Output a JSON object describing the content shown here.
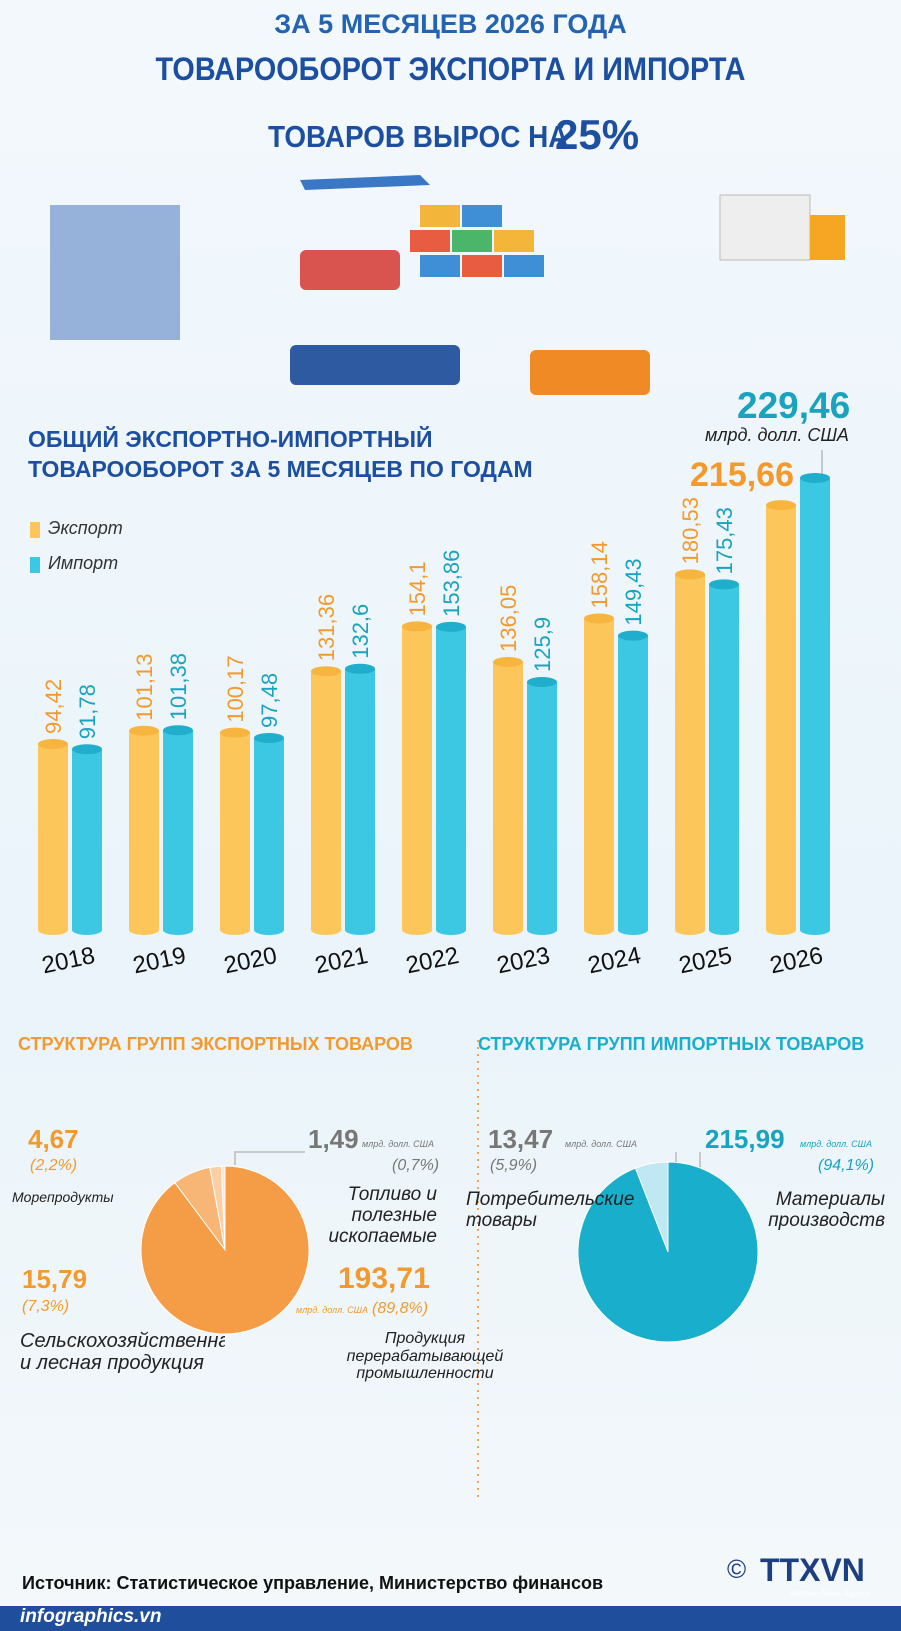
{
  "header": {
    "line1": "ЗА 5 МЕСЯЦЕВ 2026 ГОДА",
    "line2": "ТОВАРООБОРОТ ЭКСПОРТА И ИМПОРТА",
    "line3": "ТОВАРОВ ВЫРОС НА",
    "highlight": "25%"
  },
  "chart_data": [
    {
      "type": "bar",
      "title": [
        "ОБЩИЙ ЭКСПОРТНО-ИМПОРТНЫЙ",
        "ТОВАРООБОРОТ ЗА 5 МЕСЯЦЕВ ПО ГОДАМ"
      ],
      "unit": "млрд. долл. США",
      "categories": [
        "2018",
        "2019",
        "2020",
        "2021",
        "2022",
        "2023",
        "2024",
        "2025",
        "2026"
      ],
      "series": [
        {
          "name": "Экспорт",
          "color": "#fcc65a",
          "label_color": "#f39a2e",
          "values": [
            94.42,
            101.13,
            100.17,
            131.36,
            154.1,
            136.05,
            158.14,
            180.53,
            215.66
          ],
          "value_labels": [
            "94,42",
            "101,13",
            "100,17",
            "131,36",
            "154,1",
            "136,05",
            "158,14",
            "180,53",
            "215,66"
          ]
        },
        {
          "name": "Импорт",
          "color": "#3cc8e2",
          "label_color": "#1aa3bf",
          "values": [
            91.78,
            101.38,
            97.48,
            132.6,
            153.86,
            125.9,
            149.43,
            175.43,
            229.46
          ],
          "value_labels": [
            "91,78",
            "101,38",
            "97,48",
            "132,6",
            "153,86",
            "125,9",
            "149,43",
            "175,43",
            "229,46"
          ]
        }
      ]
    },
    {
      "type": "pie",
      "title": "СТРУКТУРА ГРУПП ЭКСПОРТНЫХ ТОВАРОВ",
      "unit": "млрд. долл. США",
      "categories": [
        "Морепродукты",
        "Топливо и полезные ископаемые",
        "Сельскохозяйственная и лесная продукция",
        "Продукция перерабатывающей промышленности"
      ],
      "values": [
        4.67,
        1.49,
        15.79,
        193.71
      ],
      "value_labels": [
        "4,67",
        "1,49",
        "15,79",
        "193,71"
      ],
      "shares": [
        2.2,
        0.7,
        7.3,
        89.8
      ],
      "share_labels": [
        "(2,2%)",
        "(0,7%)",
        "(7,3%)",
        "(89,8%)"
      ],
      "colors": [
        "#fbcfa2",
        "#fde6cf",
        "#f8b676",
        "#f59c46"
      ]
    },
    {
      "type": "pie",
      "title": "СТРУКТУРА ГРУПП ИМПОРТНЫХ ТОВАРОВ",
      "unit": "млрд. долл. США",
      "categories": [
        "Потребительские товары",
        "Материалы производств"
      ],
      "values": [
        13.47,
        215.99
      ],
      "value_labels": [
        "13,47",
        "215,99"
      ],
      "shares": [
        5.9,
        94.1
      ],
      "share_labels": [
        "(5,9%)",
        "(94,1%)"
      ],
      "colors": [
        "#bfe8f2",
        "#19aecb"
      ]
    }
  ],
  "footer": {
    "source": "Источник: Статистическое управление, Министерство финансов",
    "site": "infographics.vn",
    "copyright": "©",
    "logo": "TTXVN",
    "agency": "Vietnam News Agency"
  }
}
